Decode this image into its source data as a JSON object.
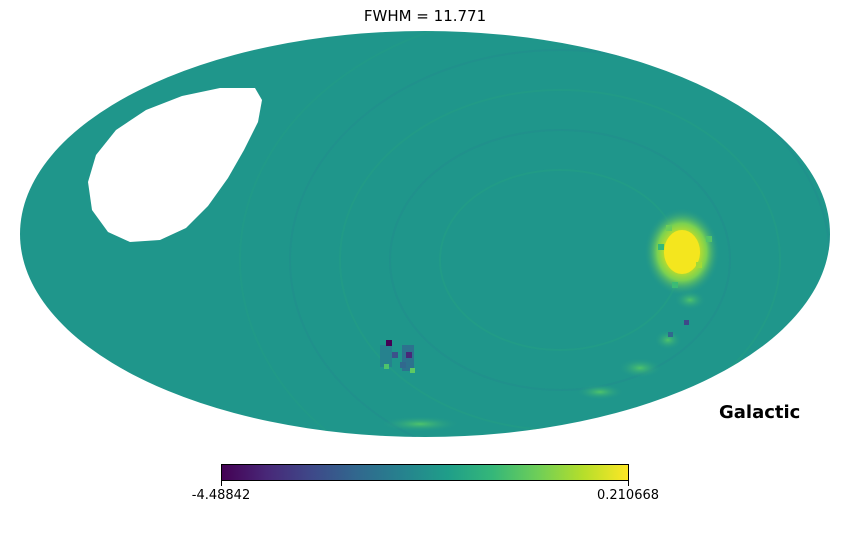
{
  "map": {
    "title": "FWHM = 11.771",
    "coordinate_system": "Galactic",
    "projection": "Mollweide",
    "background_color": "#1f968b",
    "masked_color": "#ffffff",
    "colormap": "viridis",
    "colorbar": {
      "min_label": "-4.48842",
      "max_label": "0.210668",
      "min": -4.48842,
      "max": 0.210668
    },
    "features": [
      {
        "name": "masked-region",
        "description_level": "undefined"
      },
      {
        "name": "hot-spot",
        "level": "max"
      },
      {
        "name": "cold-spot",
        "level": "min"
      }
    ]
  }
}
